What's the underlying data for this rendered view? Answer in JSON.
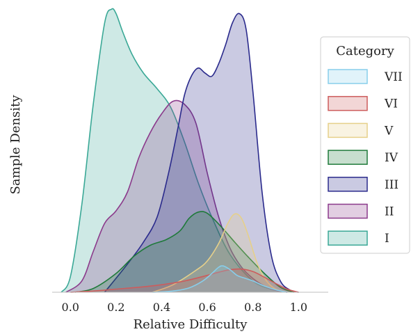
{
  "chart_data": {
    "type": "area",
    "title": "",
    "xlabel": "Relative Difficulty",
    "ylabel": "Sample Density",
    "xlim": [
      -0.08,
      1.13
    ],
    "ylim": [
      0,
      4.5
    ],
    "xticks": [
      0.0,
      0.2,
      0.4,
      0.6,
      0.8,
      1.0
    ],
    "xtick_labels": [
      "0.0",
      "0.2",
      "0.4",
      "0.6",
      "0.8",
      "1.0"
    ],
    "grid": false,
    "legend": {
      "title": "Category",
      "placement": "right"
    },
    "series": [
      {
        "name": "VII",
        "color": "#87ceeb",
        "x": [
          0.36,
          0.45,
          0.52,
          0.58,
          0.62,
          0.65,
          0.67,
          0.7,
          0.73,
          0.76,
          0.8,
          0.85,
          0.9,
          0.95
        ],
        "y": [
          0.0,
          0.02,
          0.07,
          0.18,
          0.3,
          0.4,
          0.42,
          0.36,
          0.27,
          0.23,
          0.18,
          0.1,
          0.04,
          0.0
        ]
      },
      {
        "name": "VI",
        "color": "#cd5c5c",
        "x": [
          0.0,
          0.1,
          0.2,
          0.3,
          0.4,
          0.5,
          0.6,
          0.65,
          0.7,
          0.75,
          0.8,
          0.85,
          0.9,
          0.95,
          1.0
        ],
        "y": [
          0.0,
          0.02,
          0.05,
          0.08,
          0.12,
          0.18,
          0.27,
          0.32,
          0.36,
          0.37,
          0.33,
          0.24,
          0.14,
          0.05,
          0.0
        ]
      },
      {
        "name": "V",
        "color": "#e6d08a",
        "x": [
          0.36,
          0.45,
          0.55,
          0.6,
          0.65,
          0.69,
          0.72,
          0.75,
          0.78,
          0.82,
          0.86,
          0.9,
          0.95
        ],
        "y": [
          0.0,
          0.12,
          0.35,
          0.5,
          0.78,
          1.1,
          1.25,
          1.18,
          0.9,
          0.45,
          0.18,
          0.05,
          0.0
        ]
      },
      {
        "name": "IV",
        "color": "#1f7a3a",
        "x": [
          0.02,
          0.1,
          0.2,
          0.28,
          0.35,
          0.42,
          0.48,
          0.52,
          0.56,
          0.6,
          0.66,
          0.72,
          0.78,
          0.85,
          0.92,
          0.98
        ],
        "y": [
          0.0,
          0.06,
          0.3,
          0.58,
          0.75,
          0.84,
          0.98,
          1.18,
          1.28,
          1.26,
          1.05,
          0.8,
          0.56,
          0.3,
          0.08,
          0.0
        ]
      },
      {
        "name": "III",
        "color": "#2a2a8c",
        "x": [
          0.15,
          0.25,
          0.32,
          0.38,
          0.43,
          0.47,
          0.5,
          0.53,
          0.56,
          0.59,
          0.62,
          0.65,
          0.68,
          0.71,
          0.74,
          0.77,
          0.8,
          0.84,
          0.88,
          0.92,
          0.96,
          1.0
        ],
        "y": [
          0.0,
          0.45,
          0.8,
          1.2,
          1.9,
          2.6,
          3.15,
          3.45,
          3.58,
          3.5,
          3.45,
          3.65,
          3.95,
          4.3,
          4.45,
          4.2,
          3.2,
          1.6,
          0.6,
          0.18,
          0.04,
          0.0
        ]
      },
      {
        "name": "II",
        "color": "#8b3a8b",
        "x": [
          -0.02,
          0.05,
          0.1,
          0.15,
          0.2,
          0.25,
          0.3,
          0.35,
          0.4,
          0.45,
          0.5,
          0.55,
          0.6,
          0.65,
          0.7,
          0.75,
          0.8,
          0.85,
          0.9,
          0.95
        ],
        "y": [
          0.0,
          0.18,
          0.65,
          1.1,
          1.3,
          1.6,
          2.15,
          2.55,
          2.85,
          3.05,
          3.0,
          2.7,
          1.9,
          1.2,
          0.7,
          0.4,
          0.22,
          0.1,
          0.03,
          0.0
        ]
      },
      {
        "name": "I",
        "color": "#3aa896",
        "x": [
          -0.04,
          0.0,
          0.05,
          0.1,
          0.15,
          0.18,
          0.2,
          0.23,
          0.27,
          0.32,
          0.38,
          0.44,
          0.5,
          0.56,
          0.62,
          0.7,
          0.8,
          0.88,
          0.95
        ],
        "y": [
          0.0,
          0.25,
          1.4,
          3.0,
          4.3,
          4.52,
          4.45,
          4.15,
          3.8,
          3.5,
          3.25,
          2.95,
          2.4,
          1.75,
          1.2,
          0.6,
          0.18,
          0.05,
          0.0
        ]
      }
    ]
  }
}
